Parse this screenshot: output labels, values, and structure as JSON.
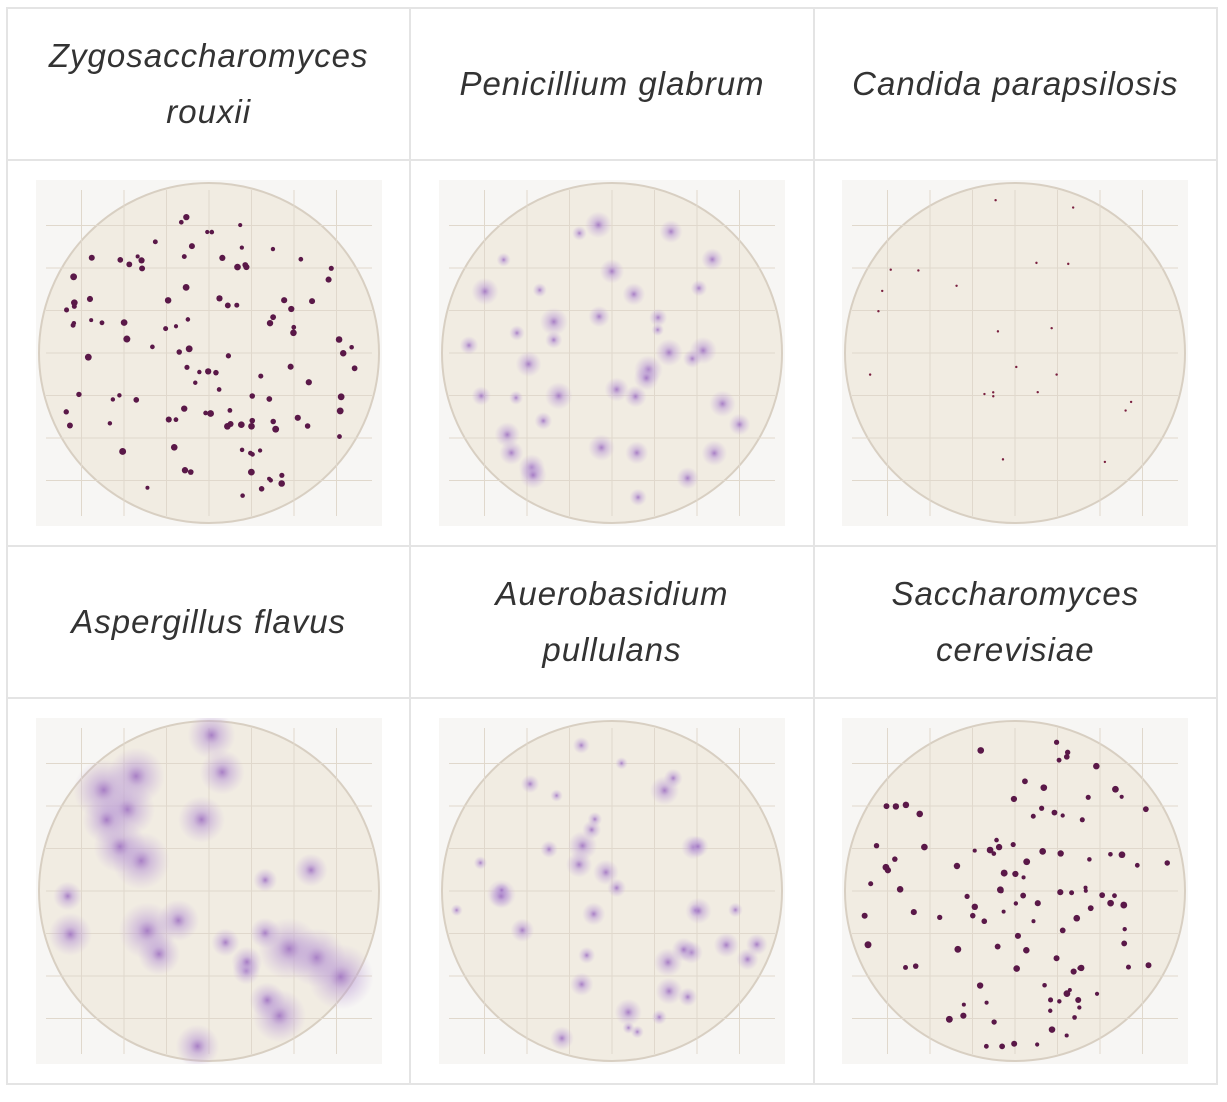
{
  "table": {
    "rows": [
      [
        "Zygosaccharomyces rouxii",
        "Penicillium glabrum",
        "Candida parapsilosis"
      ],
      [
        "Aspergillus flavus",
        "Auerobasidium pullulans",
        "Saccharomyces cerevisiae"
      ]
    ]
  }
}
